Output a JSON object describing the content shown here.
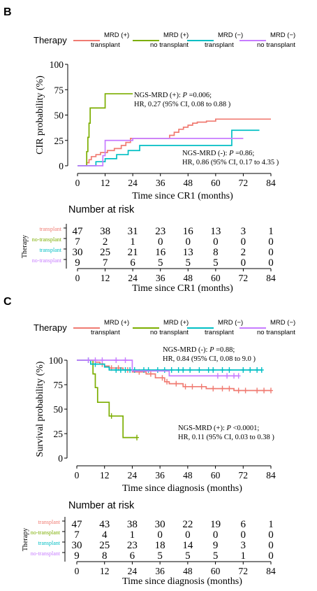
{
  "colors": {
    "transplant_pos": "#f07b72",
    "no_transplant_pos": "#7cae00",
    "transplant_neg": "#00bfc4",
    "no_transplant_neg": "#c77cff",
    "axis": "#000000"
  },
  "legend": {
    "title": "Therapy",
    "items": [
      {
        "line1": "MRD (+)",
        "line2": "transplant",
        "color_key": "transplant_pos"
      },
      {
        "line1": "MRD (+)",
        "line2": "no transplant",
        "color_key": "no_transplant_pos"
      },
      {
        "line1": "MRD (−)",
        "line2": "transplant",
        "color_key": "transplant_neg"
      },
      {
        "line1": "MRD (−)",
        "line2": "no transplant",
        "color_key": "no_transplant_neg"
      }
    ]
  },
  "chart_data": [
    {
      "panel": "B",
      "type": "line",
      "ylabel": "CIR  probability (%)",
      "xlabel": "Time since CR1 (months)",
      "xlim": [
        0,
        84
      ],
      "ylim": [
        0,
        100
      ],
      "xticks": [
        "0",
        "12",
        "24",
        "36",
        "48",
        "60",
        "72",
        "84"
      ],
      "yticks": [
        "0",
        "25",
        "50",
        "75",
        "100"
      ],
      "annotations": [
        {
          "line1": "NGS-MRD (+): ",
          "p": "P",
          "line1b": " =0.006;",
          "line2": "HR, 0.27 (95% CI, 0.08 to 0.88 )"
        },
        {
          "line1": "NGS-MRD (-): ",
          "p": "P",
          "line1b": " =0.86;",
          "line2": "HR, 0.86 (95% CI, 0.17 to 4.35 )"
        }
      ],
      "series": [
        {
          "name": "MRD (+) transplant",
          "color_key": "transplant_pos",
          "steps": [
            [
              0,
              0
            ],
            [
              4,
              3
            ],
            [
              5,
              6
            ],
            [
              6,
              9
            ],
            [
              8,
              11
            ],
            [
              10,
              13
            ],
            [
              13,
              15
            ],
            [
              16,
              17
            ],
            [
              19,
              20
            ],
            [
              21,
              23
            ],
            [
              23,
              27
            ],
            [
              40,
              30
            ],
            [
              42,
              33
            ],
            [
              44,
              36
            ],
            [
              46,
              38
            ],
            [
              48,
              40
            ],
            [
              50,
              42
            ],
            [
              52,
              43
            ],
            [
              56,
              44
            ],
            [
              60,
              46
            ],
            [
              84,
              46
            ]
          ]
        },
        {
          "name": "MRD (+) no transplant",
          "color_key": "no_transplant_pos",
          "steps": [
            [
              0,
              0
            ],
            [
              4,
              14
            ],
            [
              4.5,
              28
            ],
            [
              5,
              42
            ],
            [
              5.5,
              57
            ],
            [
              7,
              57
            ],
            [
              12,
              71
            ],
            [
              24,
              71
            ]
          ]
        },
        {
          "name": "MRD (−) transplant",
          "color_key": "transplant_neg",
          "steps": [
            [
              0,
              0
            ],
            [
              8,
              4
            ],
            [
              12,
              7
            ],
            [
              17,
              11
            ],
            [
              22,
              15
            ],
            [
              27,
              20
            ],
            [
              67,
              35
            ],
            [
              79,
              35
            ]
          ]
        },
        {
          "name": "MRD (−) no transplant",
          "color_key": "no_transplant_neg",
          "steps": [
            [
              0,
              0
            ],
            [
              11,
              10
            ],
            [
              12,
              25
            ],
            [
              24,
              27
            ],
            [
              72,
              27
            ]
          ]
        }
      ],
      "risk_table": {
        "title": "Number at risk",
        "ytitle": "Therapy",
        "xlabel": "Time since CR1 (months)",
        "xticks": [
          "0",
          "12",
          "24",
          "36",
          "48",
          "60",
          "72",
          "84"
        ],
        "rows": [
          {
            "label": "transplant",
            "color_key": "transplant_pos",
            "values": [
              "47",
              "38",
              "31",
              "23",
              "16",
              "13",
              "3",
              "1"
            ]
          },
          {
            "label": "no-transplant",
            "color_key": "no_transplant_pos",
            "values": [
              "7",
              "2",
              "1",
              "0",
              "0",
              "0",
              "0",
              "0"
            ]
          },
          {
            "label": "transplant",
            "color_key": "transplant_neg",
            "values": [
              "30",
              "25",
              "21",
              "16",
              "13",
              "8",
              "2",
              "0"
            ]
          },
          {
            "label": "no-transplant",
            "color_key": "no_transplant_neg",
            "values": [
              "9",
              "7",
              "6",
              "5",
              "5",
              "5",
              "0",
              "0"
            ]
          }
        ]
      }
    },
    {
      "panel": "C",
      "type": "line",
      "ylabel": "Survival  probability (%)",
      "xlabel": "Time since diagnosis (months)",
      "xlim": [
        0,
        84
      ],
      "ylim": [
        0,
        100
      ],
      "xticks": [
        "0",
        "12",
        "24",
        "36",
        "48",
        "60",
        "72",
        "84"
      ],
      "yticks": [
        "0",
        "25",
        "50",
        "75",
        "100"
      ],
      "annotations": [
        {
          "line1": "NGS-MRD (-):  ",
          "p": "P",
          "line1b": " =0.88;",
          "line2": "HR, 0.84 (95% CI, 0.08 to 9.0 )"
        },
        {
          "line1": "NGS-MRD (+):  ",
          "p": "P",
          "line1b": " <0.0001;",
          "line2": "HR, 0.11 (95% CI, 0.03 to 0.38 )"
        }
      ],
      "series": [
        {
          "name": "MRD (+) transplant",
          "color_key": "transplant_pos",
          "steps": [
            [
              0,
              100
            ],
            [
              8,
              98
            ],
            [
              10,
              96
            ],
            [
              12,
              94
            ],
            [
              14,
              92
            ],
            [
              20,
              90
            ],
            [
              24,
              88
            ],
            [
              30,
              86
            ],
            [
              34,
              82
            ],
            [
              38,
              78
            ],
            [
              40,
              76
            ],
            [
              46,
              73
            ],
            [
              56,
              71
            ],
            [
              68,
              69
            ],
            [
              84,
              69
            ]
          ],
          "censor": [
            11,
            15,
            18,
            22,
            27,
            32,
            37,
            39,
            43,
            47,
            50,
            54,
            59,
            63,
            66,
            70,
            73,
            78,
            81,
            84
          ]
        },
        {
          "name": "MRD (+) no transplant",
          "color_key": "no_transplant_pos",
          "steps": [
            [
              0,
              100
            ],
            [
              7,
              86
            ],
            [
              8,
              72
            ],
            [
              9,
              57
            ],
            [
              14,
              43
            ],
            [
              20,
              21
            ],
            [
              26,
              21
            ]
          ],
          "censor": [
            15,
            26
          ]
        },
        {
          "name": "MRD (−) transplant",
          "color_key": "transplant_neg",
          "steps": [
            [
              0,
              100
            ],
            [
              6,
              96
            ],
            [
              12,
              93
            ],
            [
              14,
              90
            ],
            [
              80,
              90
            ]
          ],
          "censor": [
            5,
            8,
            17,
            19,
            21,
            23,
            25,
            29,
            31,
            35,
            38,
            41,
            44,
            46,
            49,
            53,
            57,
            59,
            63,
            66,
            72,
            75,
            78,
            80
          ]
        },
        {
          "name": "MRD (−) no transplant",
          "color_key": "no_transplant_neg",
          "steps": [
            [
              0,
              100
            ],
            [
              24,
              100
            ],
            [
              24,
              89
            ],
            [
              38,
              89
            ],
            [
              40,
              84
            ],
            [
              70,
              84
            ]
          ],
          "censor": [
            5,
            8,
            11,
            17,
            21,
            61,
            65,
            68,
            70
          ]
        }
      ],
      "risk_table": {
        "title": "Number at risk",
        "ytitle": "Therapy",
        "xlabel": "Time since diagnosis (months)",
        "xticks": [
          "0",
          "12",
          "24",
          "36",
          "48",
          "60",
          "72",
          "84"
        ],
        "rows": [
          {
            "label": "transplant",
            "color_key": "transplant_pos",
            "values": [
              "47",
              "43",
              "38",
              "30",
              "22",
              "19",
              "6",
              "1"
            ]
          },
          {
            "label": "no-transplant",
            "color_key": "no_transplant_pos",
            "values": [
              "7",
              "4",
              "1",
              "0",
              "0",
              "0",
              "0",
              "0"
            ]
          },
          {
            "label": "transplant",
            "color_key": "transplant_neg",
            "values": [
              "30",
              "25",
              "23",
              "18",
              "14",
              "9",
              "3",
              "0"
            ]
          },
          {
            "label": "no-transplant",
            "color_key": "no_transplant_neg",
            "values": [
              "9",
              "8",
              "6",
              "5",
              "5",
              "5",
              "1",
              "0"
            ]
          }
        ]
      }
    }
  ],
  "panel_letters": [
    "B",
    "C"
  ]
}
